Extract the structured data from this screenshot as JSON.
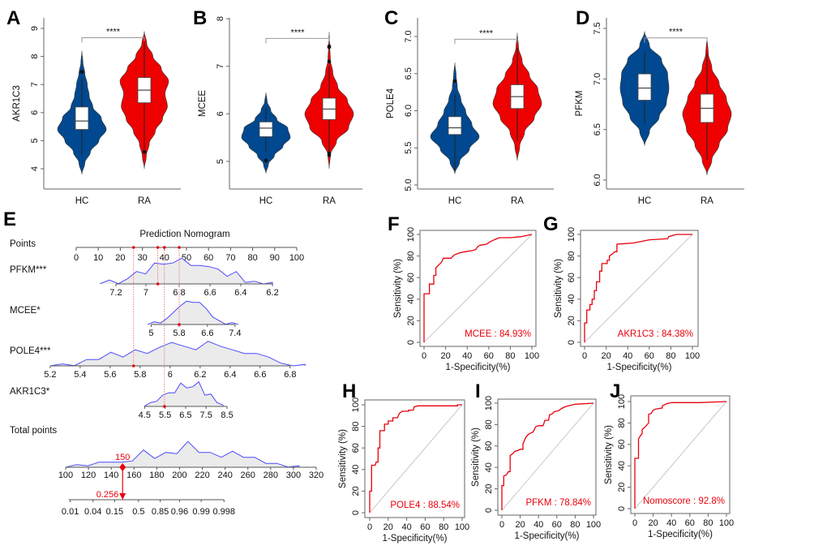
{
  "colors": {
    "hc": "#00488f",
    "ra": "#ee0000",
    "roc": "#e8000b",
    "density_line": "#4b4bff",
    "density_fill": "#ebebeb"
  },
  "chart_data": [
    {
      "panel": "A",
      "type": "violin",
      "ylabel": "AKR1C3",
      "yticks": [
        "4",
        "5",
        "6",
        "7",
        "8",
        "9"
      ],
      "categories": [
        "HC",
        "RA"
      ],
      "significance": "****",
      "groups": [
        {
          "name": "HC",
          "color": "#00488f",
          "min": 3.8,
          "max": 8.2,
          "q1": 5.4,
          "median": 5.7,
          "q3": 6.2,
          "whisker_low": 4.5,
          "whisker_high": 7.2,
          "outliers": [
            7.45
          ],
          "density": [
            0,
            0.12,
            0.35,
            0.7,
            1.0,
            0.8,
            0.45,
            0.3,
            0.22,
            0.12,
            0.04,
            0
          ]
        },
        {
          "name": "RA",
          "color": "#ee0000",
          "min": 4.0,
          "max": 8.9,
          "q1": 6.35,
          "median": 6.8,
          "q3": 7.25,
          "whisker_low": 4.7,
          "whisker_high": 8.5,
          "outliers": [
            4.6
          ],
          "density": [
            0,
            0.08,
            0.2,
            0.45,
            0.75,
            0.95,
            0.85,
            1.0,
            0.7,
            0.35,
            0.1,
            0
          ]
        }
      ]
    },
    {
      "panel": "B",
      "type": "violin",
      "ylabel": "MCEE",
      "yticks": [
        "5",
        "6",
        "7",
        "8"
      ],
      "categories": [
        "HC",
        "RA"
      ],
      "significance": "****",
      "groups": [
        {
          "name": "HC",
          "color": "#00488f",
          "min": 4.75,
          "max": 6.45,
          "q1": 5.52,
          "median": 5.7,
          "q3": 5.83,
          "whisker_low": 5.2,
          "whisker_high": 6.15,
          "outliers": [
            5.02
          ],
          "density": [
            0,
            0.1,
            0.35,
            0.7,
            1.0,
            0.9,
            0.45,
            0.2,
            0.05,
            0
          ]
        },
        {
          "name": "RA",
          "color": "#ee0000",
          "min": 4.85,
          "max": 7.72,
          "q1": 5.88,
          "median": 6.1,
          "q3": 6.33,
          "whisker_low": 5.2,
          "whisker_high": 7.0,
          "outliers": [
            5.13,
            5.17,
            7.1,
            7.4,
            7.42
          ],
          "density": [
            0,
            0.05,
            0.3,
            0.8,
            1.0,
            0.75,
            0.35,
            0.15,
            0.05,
            0.02,
            0
          ]
        }
      ]
    },
    {
      "panel": "C",
      "type": "violin",
      "ylabel": "POLE4",
      "yticks": [
        "5.0",
        "5.5",
        "6.0",
        "6.5",
        "7.0"
      ],
      "categories": [
        "HC",
        "RA"
      ],
      "significance": "****",
      "groups": [
        {
          "name": "HC",
          "color": "#00488f",
          "min": 5.15,
          "max": 6.65,
          "q1": 5.68,
          "median": 5.77,
          "q3": 5.92,
          "whisker_low": 5.2,
          "whisker_high": 6.22,
          "outliers": [
            6.4
          ],
          "density": [
            0,
            0.2,
            0.6,
            1.0,
            0.7,
            0.45,
            0.25,
            0.1,
            0.05,
            0
          ]
        },
        {
          "name": "RA",
          "color": "#ee0000",
          "min": 5.33,
          "max": 7.05,
          "q1": 6.03,
          "median": 6.19,
          "q3": 6.35,
          "whisker_low": 5.6,
          "whisker_high": 6.85,
          "outliers": [],
          "density": [
            0,
            0.1,
            0.3,
            0.7,
            1.0,
            0.85,
            0.5,
            0.2,
            0.05,
            0
          ]
        }
      ]
    },
    {
      "panel": "D",
      "type": "violin",
      "ylabel": "PFKM",
      "yticks": [
        "6.0",
        "6.5",
        "7.0",
        "7.5"
      ],
      "categories": [
        "HC",
        "RA"
      ],
      "significance": "****",
      "groups": [
        {
          "name": "HC",
          "color": "#00488f",
          "min": 6.34,
          "max": 7.47,
          "q1": 6.79,
          "median": 6.91,
          "q3": 7.05,
          "whisker_low": 6.56,
          "whisker_high": 7.27,
          "outliers": [],
          "density": [
            0,
            0.2,
            0.6,
            0.9,
            1.0,
            0.95,
            0.7,
            0.2,
            0
          ]
        },
        {
          "name": "RA",
          "color": "#ee0000",
          "min": 6.05,
          "max": 7.41,
          "q1": 6.57,
          "median": 6.71,
          "q3": 6.85,
          "whisker_low": 6.2,
          "whisker_high": 7.25,
          "outliers": [],
          "density": [
            0,
            0.2,
            0.5,
            0.85,
            1.0,
            0.8,
            0.5,
            0.2,
            0.05,
            0
          ]
        }
      ]
    },
    {
      "panel": "E",
      "type": "nomogram",
      "title": "Prediction Nomogram",
      "points": {
        "label": "Points",
        "ticks": [
          "0",
          "10",
          "20",
          "30",
          "40",
          "50",
          "60",
          "70",
          "80",
          "90",
          "100"
        ]
      },
      "variables": [
        {
          "label": "PFKM***",
          "ticks": [
            "7.2",
            "7",
            "6.8",
            "6.6",
            "6.4",
            "6.2"
          ],
          "tick_points": [
            18,
            31.6,
            46.7,
            60.7,
            74.6,
            89
          ],
          "density_range": [
            7.3,
            6.2
          ],
          "density": [
            0.05,
            0.1,
            0.05,
            0.15,
            0.55,
            0.35,
            0.9,
            0.75,
            0.9,
            1.0,
            0.8,
            0.7,
            0.75,
            0.55,
            0.35,
            0.45,
            0.1,
            0.05,
            0.03,
            0
          ],
          "selected": 6.95,
          "selected_points": 37
        },
        {
          "label": "MCEE*",
          "ticks": [
            "5",
            "5.8",
            "6.6",
            "7.4"
          ],
          "tick_points": [
            34,
            46.7,
            59.5,
            72
          ],
          "density_range": [
            4.9,
            7.5
          ],
          "density": [
            0,
            0.05,
            0.1,
            0.2,
            0.55,
            0.7,
            1.0,
            0.85,
            0.95,
            0.6,
            0.35,
            0.1,
            0.05,
            0.02,
            0
          ],
          "selected": 5.8,
          "selected_points": 46.7
        },
        {
          "label": "POLE4***",
          "ticks": [
            "5.2",
            "5.4",
            "5.6",
            "5.8",
            "6",
            "6.2",
            "6.4",
            "6.6",
            "6.8"
          ],
          "tick_points": [
            -11.8,
            1.8,
            15.4,
            29,
            42.6,
            56.2,
            69.8,
            83.4,
            97
          ],
          "density_range": [
            5.2,
            6.9
          ],
          "density": [
            0,
            0.02,
            0.05,
            0.2,
            0.3,
            0.5,
            0.4,
            0.6,
            0.55,
            0.7,
            1.0,
            0.75,
            0.7,
            0.95,
            0.85,
            0.6,
            0.55,
            0.45,
            0.4,
            0.05,
            0.03,
            0
          ],
          "selected": 5.76,
          "selected_points": 26
        },
        {
          "label": "AKR1C3*",
          "ticks": [
            "4.5",
            "5.5",
            "6.5",
            "7.5",
            "8.5"
          ],
          "tick_points": [
            31,
            40.3,
            49.6,
            58.9,
            68.4
          ],
          "density_range": [
            4.5,
            8.3
          ],
          "density": [
            0.05,
            0.1,
            0.25,
            0.4,
            0.6,
            0.5,
            1.0,
            0.7,
            0.85,
            0.95,
            0.5,
            0.45,
            0.2,
            0
          ],
          "selected": 5.4,
          "selected_points": 40
        }
      ],
      "total_points": {
        "label": "Total points",
        "ticks": [
          "100",
          "120",
          "140",
          "160",
          "180",
          "200",
          "220",
          "240",
          "260",
          "280",
          "300",
          "320"
        ],
        "density_range": [
          100,
          305
        ],
        "density": [
          0.03,
          0.05,
          0.1,
          0.15,
          0.25,
          0.15,
          0.3,
          0.65,
          0.4,
          0.55,
          0.6,
          1.0,
          0.65,
          0.55,
          0.45,
          0.6,
          0.45,
          0.35,
          0.2,
          0.1,
          0.05,
          0
        ],
        "selected": "150"
      },
      "probability": {
        "ticks": [
          "0.01",
          "0.04",
          "0.15",
          "0.5",
          "0.85",
          "0.96",
          "0.99",
          "0.998"
        ],
        "tick_total_points": [
          104,
          124,
          143,
          164,
          183,
          200,
          219,
          239
        ],
        "selected": "0.256"
      }
    },
    {
      "panel": "F",
      "type": "line",
      "xlabel": "1-Specificity(%)",
      "ylabel": "Sensitivity (%)",
      "ticks": [
        "0",
        "20",
        "40",
        "60",
        "80",
        "100"
      ],
      "xlim": [
        0,
        100
      ],
      "ylim": [
        0,
        100
      ],
      "auc_label": "MCEE : 84.93%",
      "points": [
        [
          0,
          0
        ],
        [
          0,
          45
        ],
        [
          5,
          45
        ],
        [
          5,
          54
        ],
        [
          9,
          54
        ],
        [
          9,
          62
        ],
        [
          11,
          62
        ],
        [
          11,
          69
        ],
        [
          14,
          72
        ],
        [
          16,
          74
        ],
        [
          18,
          78
        ],
        [
          25,
          78
        ],
        [
          28,
          81
        ],
        [
          33,
          83
        ],
        [
          38,
          84
        ],
        [
          45,
          85
        ],
        [
          48,
          86
        ],
        [
          50,
          89
        ],
        [
          52,
          90
        ],
        [
          58,
          91
        ],
        [
          61,
          93
        ],
        [
          65,
          95
        ],
        [
          70,
          97
        ],
        [
          80,
          97
        ],
        [
          90,
          98
        ],
        [
          100,
          100
        ]
      ]
    },
    {
      "panel": "G",
      "type": "line",
      "xlabel": "1-Specificity(%)",
      "ylabel": "Sensitivity (%)",
      "ticks": [
        "0",
        "20",
        "40",
        "60",
        "80",
        "100"
      ],
      "xlim": [
        0,
        100
      ],
      "ylim": [
        0,
        100
      ],
      "auc_label": "AKR1C3 : 84.38%",
      "points": [
        [
          0,
          0
        ],
        [
          0,
          18
        ],
        [
          2,
          18
        ],
        [
          2,
          30
        ],
        [
          5,
          30
        ],
        [
          5,
          35
        ],
        [
          7,
          35
        ],
        [
          7,
          40
        ],
        [
          9,
          40
        ],
        [
          9,
          48
        ],
        [
          11,
          48
        ],
        [
          11,
          56
        ],
        [
          14,
          56
        ],
        [
          14,
          66
        ],
        [
          16,
          66
        ],
        [
          16,
          73
        ],
        [
          21,
          73
        ],
        [
          21,
          76
        ],
        [
          23,
          76
        ],
        [
          23,
          80
        ],
        [
          26,
          82
        ],
        [
          28,
          84
        ],
        [
          30,
          84
        ],
        [
          30,
          91
        ],
        [
          45,
          92
        ],
        [
          55,
          94
        ],
        [
          60,
          95
        ],
        [
          77,
          96
        ],
        [
          78,
          98
        ],
        [
          85,
          100
        ],
        [
          100,
          100
        ]
      ]
    },
    {
      "panel": "H",
      "type": "line",
      "xlabel": "1-Specificity(%)",
      "ylabel": "Sensitivity (%)",
      "ticks": [
        "0",
        "20",
        "40",
        "60",
        "80",
        "100"
      ],
      "xlim": [
        0,
        100
      ],
      "ylim": [
        0,
        100
      ],
      "auc_label": "POLE4 : 88.54%",
      "points": [
        [
          0,
          0
        ],
        [
          0,
          20
        ],
        [
          2,
          20
        ],
        [
          2,
          44
        ],
        [
          6,
          44
        ],
        [
          7,
          47
        ],
        [
          9,
          47
        ],
        [
          9,
          60
        ],
        [
          11,
          60
        ],
        [
          11,
          76
        ],
        [
          16,
          76
        ],
        [
          16,
          82
        ],
        [
          20,
          82
        ],
        [
          20,
          85
        ],
        [
          25,
          85
        ],
        [
          25,
          88
        ],
        [
          30,
          88
        ],
        [
          32,
          92
        ],
        [
          35,
          94
        ],
        [
          42,
          94
        ],
        [
          42,
          95
        ],
        [
          47,
          95
        ],
        [
          48,
          98
        ],
        [
          52,
          99
        ],
        [
          60,
          99
        ],
        [
          95,
          99
        ],
        [
          95,
          100
        ],
        [
          100,
          100
        ]
      ]
    },
    {
      "panel": "I",
      "type": "line",
      "xlabel": "1-Specificity(%)",
      "ylabel": "Sensitivity (%)",
      "ticks": [
        "0",
        "20",
        "40",
        "60",
        "80",
        "100"
      ],
      "xlim": [
        0,
        100
      ],
      "ylim": [
        0,
        100
      ],
      "auc_label": "PFKM : 78.84%",
      "points": [
        [
          0,
          0
        ],
        [
          0,
          23
        ],
        [
          2,
          23
        ],
        [
          2,
          32
        ],
        [
          5,
          33
        ],
        [
          7,
          36
        ],
        [
          9,
          36
        ],
        [
          9,
          51
        ],
        [
          12,
          53
        ],
        [
          14,
          55
        ],
        [
          18,
          56
        ],
        [
          20,
          57
        ],
        [
          23,
          57
        ],
        [
          23,
          62
        ],
        [
          26,
          68
        ],
        [
          29,
          71
        ],
        [
          34,
          73
        ],
        [
          37,
          78
        ],
        [
          40,
          79
        ],
        [
          45,
          79
        ],
        [
          47,
          84
        ],
        [
          51,
          84
        ],
        [
          52,
          89
        ],
        [
          55,
          90
        ],
        [
          57,
          92
        ],
        [
          62,
          93
        ],
        [
          65,
          95
        ],
        [
          70,
          97
        ],
        [
          75,
          98
        ],
        [
          80,
          99
        ],
        [
          100,
          100
        ]
      ]
    },
    {
      "panel": "J",
      "type": "line",
      "xlabel": "1-Specificity(%)",
      "ylabel": "Sensitivity (%)",
      "ticks": [
        "0",
        "20",
        "40",
        "60",
        "80",
        "100"
      ],
      "xlim": [
        0,
        100
      ],
      "ylim": [
        0,
        100
      ],
      "auc_label": "Nomoscore : 92.8%",
      "points": [
        [
          0,
          0
        ],
        [
          0,
          47
        ],
        [
          4,
          47
        ],
        [
          4,
          65
        ],
        [
          6,
          68
        ],
        [
          8,
          70
        ],
        [
          8,
          74
        ],
        [
          11,
          76
        ],
        [
          13,
          78
        ],
        [
          15,
          80
        ],
        [
          15,
          88
        ],
        [
          18,
          89
        ],
        [
          20,
          92
        ],
        [
          23,
          93
        ],
        [
          30,
          94
        ],
        [
          30,
          96
        ],
        [
          35,
          98
        ],
        [
          40,
          99
        ],
        [
          70,
          99
        ],
        [
          100,
          100
        ]
      ]
    }
  ]
}
